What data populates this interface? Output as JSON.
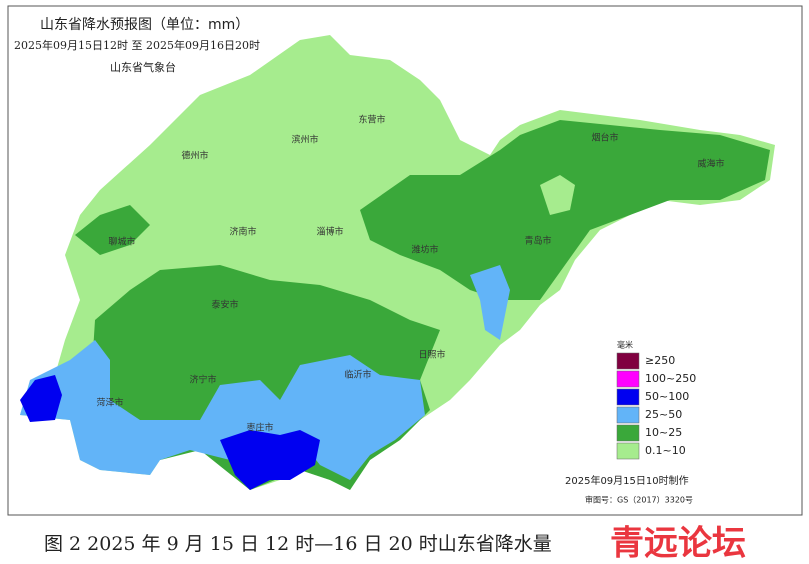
{
  "map": {
    "title": "山东省降水预报图（单位：mm）",
    "period": "2025年09月15日12时  至  2025年09月16日20时",
    "issuer": "山东省气象台",
    "cities": [
      "德州市",
      "滨州市",
      "东营市",
      "烟台市",
      "威海市",
      "聊城市",
      "济南市",
      "淄博市",
      "潍坊市",
      "青岛市",
      "泰安市",
      "日照市",
      "济宁市",
      "临沂市",
      "菏泽市",
      "枣庄市"
    ],
    "legend": {
      "unit": "毫米",
      "items": [
        {
          "label": "≥250",
          "color": "#800040"
        },
        {
          "label": "100~250",
          "color": "#ff00ff"
        },
        {
          "label": "50~100",
          "color": "#0000f0"
        },
        {
          "label": "25~50",
          "color": "#62b4f8"
        },
        {
          "label": "10~25",
          "color": "#3aa83a"
        },
        {
          "label": "0.1~10",
          "color": "#a6ec8e"
        }
      ]
    },
    "made": "2025年09月15日10时制作",
    "approval": "审图号：GS（2017）3320号"
  },
  "caption": "图 2 2025 年 9 月 15 日 12 时—16 日 20 时山东省降水量",
  "watermark": "青远论坛"
}
